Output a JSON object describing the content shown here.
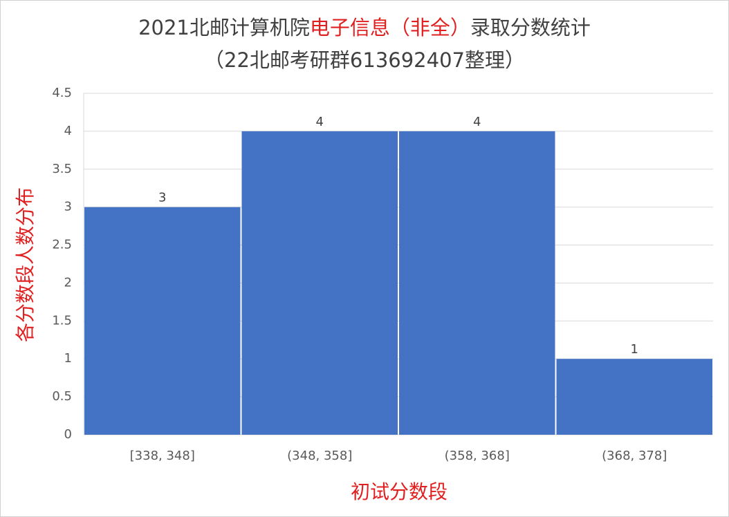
{
  "chart_data": {
    "type": "bar",
    "title": [
      "2021北邮计算机院",
      "电子信息（非全）",
      "录取分数统计"
    ],
    "title_highlight_color": "#e02020",
    "subtitle": "（22北邮考研群613692407整理）",
    "x_label": "初试分数段",
    "y_label": "各分数段人数分布",
    "axis_label_color": "#e02020",
    "categories": [
      "[338, 348]",
      "(348, 358]",
      "(358, 368]",
      "(368, 378]"
    ],
    "values": [
      3,
      4,
      4,
      1
    ],
    "color": "#4472c4",
    "ylim": [
      0,
      4.5
    ],
    "yticks": [
      0,
      0.5,
      1,
      1.5,
      2,
      2.5,
      3,
      3.5,
      4,
      4.5
    ],
    "grid": true
  }
}
